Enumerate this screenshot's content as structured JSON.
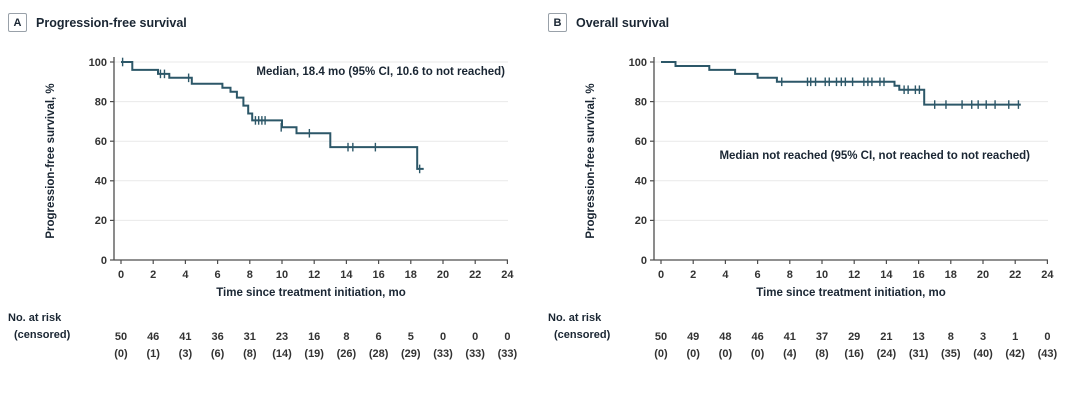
{
  "figure": {
    "panels": [
      {
        "label": "A",
        "title": "Progression-free survival",
        "annotation": "Median, 18.4 mo (95% CI, 10.6 to not reached)",
        "at_risk_label": "No. at risk",
        "censored_label": "(censored)"
      },
      {
        "label": "B",
        "title": "Overall survival",
        "annotation": "Median not reached (95% CI, not reached to not reached)",
        "at_risk_label": "No. at risk",
        "censored_label": "(censored)"
      }
    ]
  },
  "chart_data": [
    {
      "type": "line",
      "subtype": "kaplan-meier-step",
      "panel": "A",
      "title": "Progression-free survival",
      "xlabel": "Time since treatment initiation, mo",
      "ylabel": "Progression-free survival, %",
      "xlim": [
        0,
        24
      ],
      "ylim": [
        0,
        100
      ],
      "xticks": [
        0,
        2,
        4,
        6,
        8,
        10,
        12,
        14,
        16,
        18,
        20,
        22,
        24
      ],
      "yticks": [
        0,
        20,
        40,
        60,
        80,
        100
      ],
      "grid": "horizontal",
      "annotation": "Median, 18.4 mo (95% CI, 10.6 to not reached)",
      "steps": [
        [
          0,
          100
        ],
        [
          0.7,
          96
        ],
        [
          2.3,
          94
        ],
        [
          3.0,
          92
        ],
        [
          4.4,
          89
        ],
        [
          6.3,
          87
        ],
        [
          6.8,
          85
        ],
        [
          7.2,
          82
        ],
        [
          7.6,
          78
        ],
        [
          7.9,
          74
        ],
        [
          8.15,
          70.5
        ],
        [
          10.0,
          67
        ],
        [
          10.9,
          64
        ],
        [
          13.0,
          57
        ],
        [
          18.4,
          46
        ]
      ],
      "curve_end": 18.8,
      "censor_marks": [
        [
          0.1,
          100
        ],
        [
          2.45,
          94
        ],
        [
          2.7,
          94
        ],
        [
          4.2,
          92
        ],
        [
          8.35,
          70.5
        ],
        [
          8.55,
          70.5
        ],
        [
          8.75,
          70.5
        ],
        [
          8.95,
          70.5
        ],
        [
          9.95,
          67
        ],
        [
          11.7,
          64
        ],
        [
          14.1,
          57
        ],
        [
          14.4,
          57
        ],
        [
          15.8,
          57
        ],
        [
          18.55,
          46
        ]
      ],
      "at_risk_times": [
        0,
        2,
        4,
        6,
        8,
        10,
        12,
        14,
        16,
        18,
        20,
        22,
        24
      ],
      "at_risk": [
        "50",
        "46",
        "41",
        "36",
        "31",
        "23",
        "16",
        "8",
        "6",
        "5",
        "0",
        "0",
        "0"
      ],
      "censored": [
        "(0)",
        "(1)",
        "(3)",
        "(6)",
        "(8)",
        "(14)",
        "(19)",
        "(26)",
        "(28)",
        "(29)",
        "(33)",
        "(33)",
        "(33)"
      ]
    },
    {
      "type": "line",
      "subtype": "kaplan-meier-step",
      "panel": "B",
      "title": "Overall survival",
      "xlabel": "Time since treatment initiation, mo",
      "ylabel": "Progression-free survival, %",
      "xlim": [
        0,
        24
      ],
      "ylim": [
        0,
        100
      ],
      "xticks": [
        0,
        2,
        4,
        6,
        8,
        10,
        12,
        14,
        16,
        18,
        20,
        22,
        24
      ],
      "yticks": [
        0,
        20,
        40,
        60,
        80,
        100
      ],
      "grid": "horizontal",
      "annotation": "Median not reached (95% CI, not reached to not reached)",
      "steps": [
        [
          0,
          100
        ],
        [
          0.9,
          98
        ],
        [
          3.0,
          96
        ],
        [
          4.6,
          94
        ],
        [
          6.0,
          92
        ],
        [
          7.2,
          90
        ],
        [
          14.5,
          88
        ],
        [
          14.8,
          86
        ],
        [
          16.35,
          78.5
        ]
      ],
      "curve_end": 22.35,
      "censor_marks": [
        [
          7.5,
          90
        ],
        [
          9.1,
          90
        ],
        [
          9.3,
          90
        ],
        [
          9.6,
          90
        ],
        [
          10.2,
          90
        ],
        [
          10.45,
          90
        ],
        [
          10.9,
          90
        ],
        [
          11.2,
          90
        ],
        [
          11.45,
          90
        ],
        [
          11.9,
          90
        ],
        [
          12.6,
          90
        ],
        [
          12.85,
          90
        ],
        [
          13.1,
          90
        ],
        [
          13.6,
          90
        ],
        [
          13.85,
          90
        ],
        [
          15.1,
          86
        ],
        [
          15.35,
          86
        ],
        [
          15.8,
          86
        ],
        [
          16.05,
          86
        ],
        [
          17.0,
          78.5
        ],
        [
          17.7,
          78.5
        ],
        [
          18.7,
          78.5
        ],
        [
          19.3,
          78.5
        ],
        [
          19.7,
          78.5
        ],
        [
          20.2,
          78.5
        ],
        [
          20.75,
          78.5
        ],
        [
          21.6,
          78.5
        ],
        [
          22.2,
          78.5
        ]
      ],
      "at_risk_times": [
        0,
        2,
        4,
        6,
        8,
        10,
        12,
        14,
        16,
        18,
        20,
        22,
        24
      ],
      "at_risk": [
        "50",
        "49",
        "48",
        "46",
        "41",
        "37",
        "29",
        "21",
        "13",
        "8",
        "3",
        "1",
        "0"
      ],
      "censored": [
        "(0)",
        "(0)",
        "(0)",
        "(0)",
        "(4)",
        "(8)",
        "(16)",
        "(24)",
        "(31)",
        "(35)",
        "(40)",
        "(42)",
        "(43)"
      ]
    }
  ],
  "colors": {
    "curve": "#2c5768",
    "text": "#1a2633",
    "axis": "#4d4d4d",
    "tick_label": "#333333",
    "grid": "#e9e9e9"
  }
}
